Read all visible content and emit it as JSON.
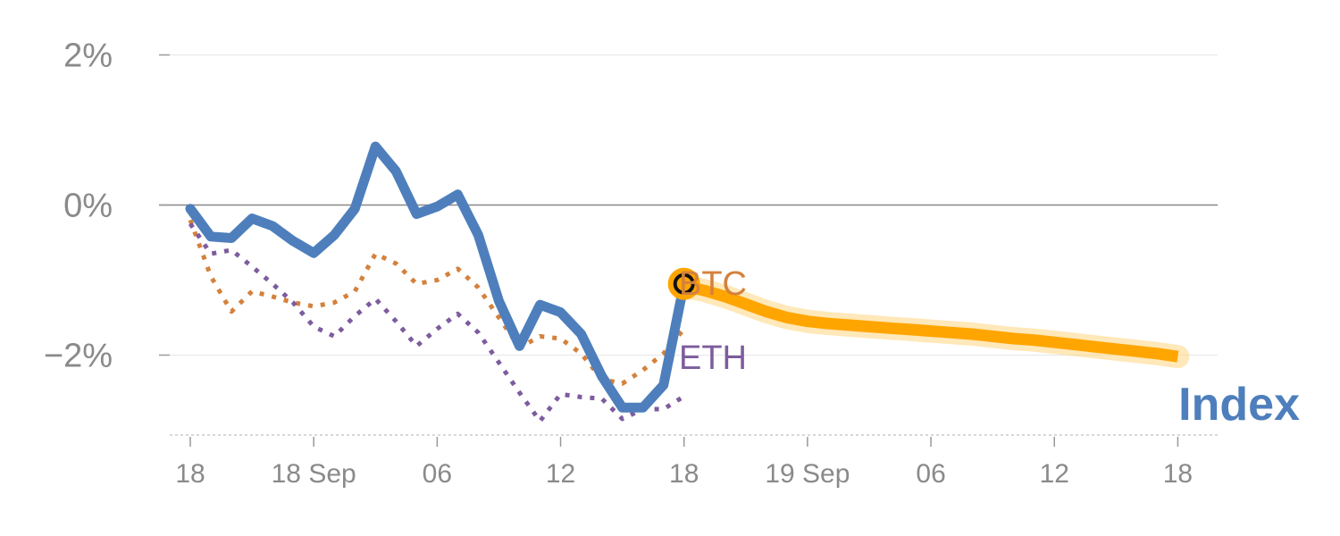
{
  "chart_data": {
    "type": "line",
    "title": "",
    "xlabel": "",
    "ylabel": "",
    "ylim": [
      -3.05,
      2.05
    ],
    "x_ticks": [
      {
        "x": 0,
        "label": "18"
      },
      {
        "x": 6,
        "label": "18 Sep"
      },
      {
        "x": 12,
        "label": "06"
      },
      {
        "x": 18,
        "label": "12"
      },
      {
        "x": 24,
        "label": "18"
      },
      {
        "x": 30,
        "label": "19 Sep"
      },
      {
        "x": 36,
        "label": "06"
      },
      {
        "x": 42,
        "label": "12"
      },
      {
        "x": 48,
        "label": "18"
      }
    ],
    "y_ticks": [
      {
        "value": 2,
        "label": "2%"
      },
      {
        "value": 0,
        "label": "0%"
      },
      {
        "value": -2,
        "label": "−2%"
      }
    ],
    "zero_line": 0,
    "series": [
      {
        "name": "Index",
        "role": "history",
        "color": "#4e7fbc",
        "style": "solid",
        "x": [
          0,
          1,
          2,
          3,
          4,
          5,
          6,
          7,
          8,
          9,
          10,
          11,
          12,
          13,
          14,
          15,
          16,
          17,
          18,
          19,
          20,
          21,
          22,
          23,
          24
        ],
        "values": [
          -0.05,
          -0.42,
          -0.44,
          -0.18,
          -0.28,
          -0.48,
          -0.64,
          -0.4,
          -0.05,
          0.78,
          0.45,
          -0.12,
          -0.02,
          0.14,
          -0.4,
          -1.28,
          -1.88,
          -1.33,
          -1.43,
          -1.72,
          -2.28,
          -2.7,
          -2.7,
          -2.4,
          -1.05
        ]
      },
      {
        "name": "BTC",
        "role": "comparison",
        "color": "#d4813c",
        "style": "dotted",
        "x": [
          0,
          1,
          2,
          3,
          4,
          5,
          6,
          7,
          8,
          9,
          10,
          11,
          12,
          13,
          14,
          15,
          16,
          17,
          18,
          19,
          20,
          21,
          22,
          23,
          24
        ],
        "values": [
          -0.2,
          -0.95,
          -1.42,
          -1.15,
          -1.22,
          -1.3,
          -1.35,
          -1.3,
          -1.15,
          -0.65,
          -0.78,
          -1.05,
          -1.0,
          -0.85,
          -1.1,
          -1.5,
          -1.9,
          -1.75,
          -1.78,
          -1.98,
          -2.32,
          -2.38,
          -2.2,
          -1.98,
          -1.65
        ]
      },
      {
        "name": "ETH",
        "role": "comparison",
        "color": "#7d5c9e",
        "style": "dotted",
        "x": [
          0,
          1,
          2,
          3,
          4,
          5,
          6,
          7,
          8,
          9,
          10,
          11,
          12,
          13,
          14,
          15,
          16,
          17,
          18,
          19,
          20,
          21,
          22,
          23,
          24
        ],
        "values": [
          -0.25,
          -0.65,
          -0.6,
          -0.82,
          -1.05,
          -1.3,
          -1.62,
          -1.75,
          -1.48,
          -1.25,
          -1.55,
          -1.88,
          -1.65,
          -1.45,
          -1.7,
          -2.1,
          -2.5,
          -2.88,
          -2.52,
          -2.56,
          -2.58,
          -2.85,
          -2.72,
          -2.72,
          -2.55
        ]
      },
      {
        "name": "Index forecast",
        "role": "forecast",
        "color": "#ffa500",
        "style": "band",
        "x": [
          24,
          25,
          26,
          27,
          28,
          29,
          30,
          31,
          32,
          33,
          34,
          35,
          36,
          37,
          38,
          39,
          40,
          41,
          42,
          43,
          44,
          45,
          46,
          47,
          48
        ],
        "values": [
          -1.08,
          -1.14,
          -1.22,
          -1.32,
          -1.42,
          -1.5,
          -1.55,
          -1.58,
          -1.6,
          -1.62,
          -1.64,
          -1.66,
          -1.68,
          -1.7,
          -1.72,
          -1.75,
          -1.78,
          -1.8,
          -1.83,
          -1.86,
          -1.89,
          -1.92,
          -1.95,
          -1.98,
          -2.02
        ]
      }
    ],
    "marker": {
      "x": 24,
      "value": -1.05,
      "color": "#ffa500"
    },
    "labels": {
      "btc": "BTC",
      "eth": "ETH",
      "index": "Index"
    },
    "colors": {
      "grid": "#e6e6e6",
      "zero": "#888888",
      "axis_text": "#8a8a8a",
      "forecast_band": "#ffd580"
    }
  }
}
